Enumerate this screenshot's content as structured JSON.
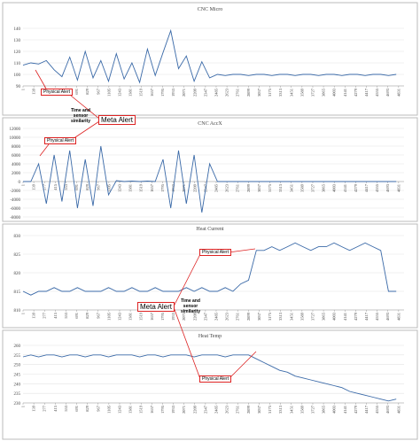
{
  "chart_data": [
    {
      "type": "line",
      "title": "CNC Micro",
      "color": "#3b6aa8",
      "x": [
        1,
        101,
        201,
        301,
        401,
        501,
        601,
        701,
        801,
        901,
        1001,
        1101,
        1201,
        1301,
        1401,
        1501,
        1601,
        1701,
        1801,
        1901,
        2001,
        2101,
        2201,
        2301,
        2401,
        2501,
        2601,
        2701,
        2801,
        2901,
        3001,
        3101,
        3201,
        3301,
        3401,
        3501,
        3601,
        3701,
        3801,
        3901,
        4001,
        4101,
        4201,
        4301,
        4401,
        4501,
        4601,
        4701,
        4801
      ],
      "values": [
        108,
        110,
        109,
        112,
        104,
        98,
        115,
        95,
        120,
        97,
        112,
        94,
        118,
        96,
        110,
        93,
        122,
        99,
        119,
        138,
        105,
        116,
        94,
        111,
        97,
        100,
        99,
        100,
        100,
        99,
        100,
        100,
        99,
        100,
        100,
        99,
        100,
        100,
        99,
        100,
        100,
        99,
        100,
        100,
        99,
        100,
        100,
        99,
        100
      ],
      "xlim": [
        1,
        4901
      ],
      "xticks": [
        1,
        139,
        277,
        415,
        553,
        691,
        829,
        967,
        1105,
        1243,
        1381,
        1519,
        1657,
        1795,
        1933,
        2071,
        2209,
        2347,
        2485,
        2623,
        2761,
        2899,
        3037,
        3175,
        3313,
        3451,
        3589,
        3727,
        3865,
        4003,
        4141,
        4279,
        4417,
        4555,
        4693,
        4831
      ],
      "ylim": [
        90,
        140
      ],
      "yticks": [
        90,
        100,
        110,
        120,
        130,
        140
      ],
      "grid": true
    },
    {
      "type": "line",
      "title": "CNC AccX",
      "color": "#3b6aa8",
      "x": [
        1,
        101,
        201,
        301,
        401,
        501,
        601,
        701,
        801,
        901,
        1001,
        1101,
        1201,
        1301,
        1401,
        1501,
        1601,
        1701,
        1801,
        1901,
        2001,
        2101,
        2201,
        2301,
        2401,
        2501,
        2601,
        2701,
        2801,
        2901,
        3001,
        3101,
        3201,
        3301,
        3401,
        3501,
        3601,
        3701,
        3801,
        3901,
        4001,
        4101,
        4201,
        4301,
        4401,
        4501,
        4601,
        4701,
        4801
      ],
      "values": [
        0,
        0,
        4000,
        -5000,
        6000,
        -4500,
        7000,
        -6000,
        5000,
        -5500,
        8000,
        -3000,
        200,
        0,
        100,
        0,
        100,
        0,
        5000,
        -6000,
        7000,
        -5000,
        6000,
        -7000,
        4000,
        0,
        0,
        0,
        0,
        0,
        0,
        0,
        0,
        0,
        0,
        0,
        0,
        0,
        0,
        0,
        0,
        0,
        0,
        0,
        0,
        0,
        0,
        0,
        0
      ],
      "xlim": [
        1,
        4901
      ],
      "xticks": [
        1,
        139,
        277,
        415,
        553,
        691,
        829,
        967,
        1105,
        1243,
        1381,
        1519,
        1657,
        1795,
        1933,
        2071,
        2209,
        2347,
        2485,
        2623,
        2761,
        2899,
        3037,
        3175,
        3313,
        3451,
        3589,
        3727,
        3865,
        4003,
        4141,
        4279,
        4417,
        4555,
        4693,
        4831
      ],
      "ylim": [
        -8000,
        12000
      ],
      "yticks": [
        -8000,
        -6000,
        -4000,
        -2000,
        0,
        2000,
        4000,
        6000,
        8000,
        10000,
        12000
      ],
      "grid": true
    },
    {
      "type": "line",
      "title": "Heat Current",
      "color": "#3b6aa8",
      "x": [
        1,
        101,
        201,
        301,
        401,
        501,
        601,
        701,
        801,
        901,
        1001,
        1101,
        1201,
        1301,
        1401,
        1501,
        1601,
        1701,
        1801,
        1901,
        2001,
        2101,
        2201,
        2301,
        2401,
        2501,
        2601,
        2701,
        2801,
        2901,
        3001,
        3101,
        3201,
        3301,
        3401,
        3501,
        3601,
        3701,
        3801,
        3901,
        4001,
        4101,
        4201,
        4301,
        4401,
        4501,
        4601,
        4701,
        4801
      ],
      "values": [
        815,
        814,
        815,
        815,
        816,
        815,
        815,
        816,
        815,
        815,
        815,
        816,
        815,
        815,
        816,
        815,
        815,
        816,
        815,
        815,
        815,
        816,
        815,
        816,
        815,
        815,
        816,
        815,
        817,
        818,
        826,
        826,
        827,
        826,
        827,
        828,
        827,
        826,
        827,
        827,
        828,
        827,
        826,
        827,
        828,
        827,
        826,
        815,
        815
      ],
      "xlim": [
        1,
        4901
      ],
      "xticks": [
        1,
        139,
        277,
        415,
        553,
        691,
        829,
        967,
        1105,
        1243,
        1381,
        1519,
        1657,
        1795,
        1933,
        2071,
        2209,
        2347,
        2485,
        2623,
        2761,
        2899,
        3037,
        3175,
        3313,
        3451,
        3589,
        3727,
        3865,
        4003,
        4141,
        4279,
        4417,
        4555,
        4693,
        4831
      ],
      "ylim": [
        810,
        830
      ],
      "yticks": [
        810,
        815,
        820,
        825,
        830
      ],
      "grid": true
    },
    {
      "type": "line",
      "title": "Heat Temp",
      "color": "#3b6aa8",
      "x": [
        1,
        101,
        201,
        301,
        401,
        501,
        601,
        701,
        801,
        901,
        1001,
        1101,
        1201,
        1301,
        1401,
        1501,
        1601,
        1701,
        1801,
        1901,
        2001,
        2101,
        2201,
        2301,
        2401,
        2501,
        2601,
        2701,
        2801,
        2901,
        3001,
        3101,
        3201,
        3301,
        3401,
        3501,
        3601,
        3701,
        3801,
        3901,
        4001,
        4101,
        4201,
        4301,
        4401,
        4501,
        4601,
        4701,
        4801
      ],
      "values": [
        254,
        255,
        254,
        255,
        255,
        254,
        255,
        255,
        254,
        255,
        255,
        254,
        255,
        255,
        255,
        254,
        255,
        255,
        254,
        255,
        255,
        255,
        254,
        255,
        255,
        255,
        254,
        255,
        255,
        255,
        253,
        251,
        249,
        247,
        246,
        244,
        243,
        242,
        241,
        240,
        239,
        238,
        236,
        235,
        234,
        233,
        232,
        231,
        232
      ],
      "xlim": [
        1,
        4901
      ],
      "xticks": [
        1,
        139,
        277,
        415,
        553,
        691,
        829,
        967,
        1105,
        1243,
        1381,
        1519,
        1657,
        1795,
        1933,
        2071,
        2209,
        2347,
        2485,
        2623,
        2761,
        2899,
        3037,
        3175,
        3313,
        3451,
        3589,
        3727,
        3865,
        4003,
        4141,
        4279,
        4417,
        4555,
        4693,
        4831
      ],
      "ylim": [
        230,
        260
      ],
      "yticks": [
        230,
        235,
        240,
        245,
        250,
        255,
        260
      ],
      "grid": true
    }
  ],
  "annotations": [
    "Physical Alert",
    "Time and sensor similarity",
    "Meta Alert",
    "Physical Alert",
    "Physical Alert",
    "Meta Alert",
    "Time and sensor similarity",
    "Physical Alert"
  ]
}
